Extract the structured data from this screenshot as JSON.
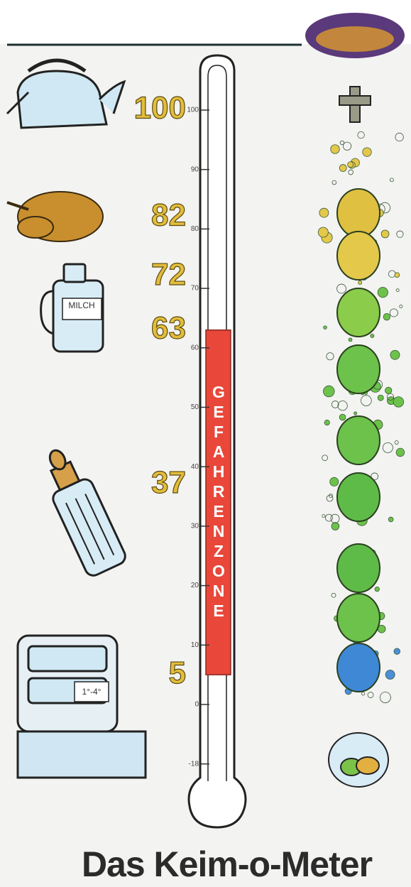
{
  "title": "Das Keim-o-Meter",
  "thermometer": {
    "ticks": [
      100,
      90,
      80,
      70,
      60,
      50,
      40,
      30,
      20,
      10,
      0,
      -18
    ],
    "zone": {
      "label": "GEFAHRENZONE",
      "from": 5,
      "to": 63
    }
  },
  "markers": [
    100,
    82,
    72,
    63,
    37,
    5
  ],
  "milk_label": "MILCH",
  "fridge_sign": "1°-4°"
}
